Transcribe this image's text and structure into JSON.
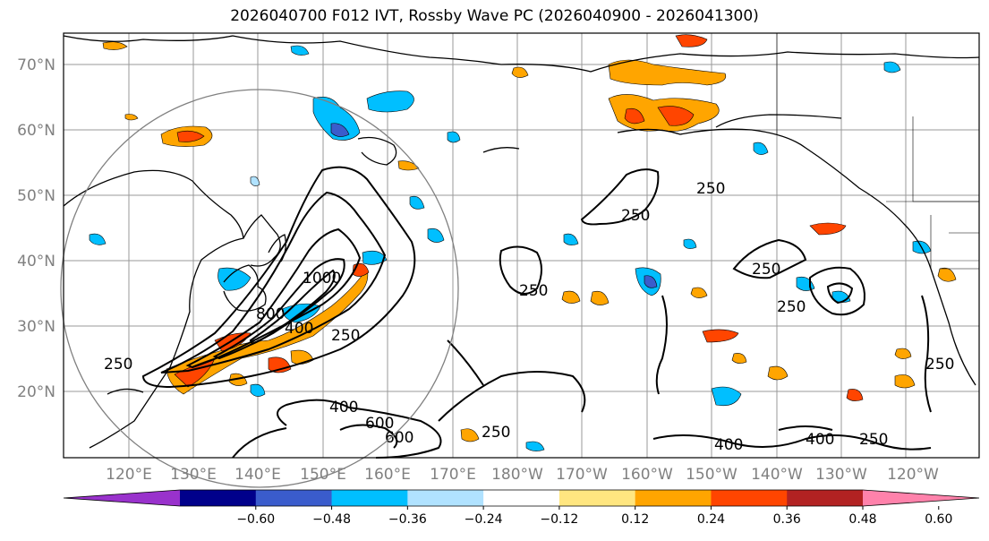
{
  "title": "2026040700 F012 IVT, Rossby Wave PC (2026040900 - 2026041300)",
  "lat_labels": [
    "70°N",
    "60°N",
    "50°N",
    "40°N",
    "30°N",
    "20°N"
  ],
  "lon_labels": [
    "120°E",
    "130°E",
    "140°E",
    "150°E",
    "160°E",
    "170°E",
    "180°W",
    "170°W",
    "160°W",
    "150°W",
    "140°W",
    "130°W",
    "120°W"
  ],
  "contour_labels": [
    "250",
    "250",
    "250",
    "250",
    "250",
    "250",
    "250",
    "250",
    "400",
    "400",
    "400",
    "400",
    "600",
    "600",
    "800",
    "1000",
    "250",
    "250"
  ],
  "colorbar": {
    "ticks": [
      "−0.60",
      "−0.48",
      "−0.36",
      "−0.24",
      "−0.12",
      "0.12",
      "0.24",
      "0.36",
      "0.48",
      "0.60"
    ],
    "colors": [
      "#9932cc",
      "#00008b",
      "#3a5ccc",
      "#00bfff",
      "#b0e2ff",
      "#ffffff",
      "#ffe680",
      "#ffa500",
      "#ff4500",
      "#b22222",
      "#ff82ab"
    ]
  },
  "colors": {
    "grid": "#999999",
    "coast": "#000000",
    "circle": "#808080"
  }
}
